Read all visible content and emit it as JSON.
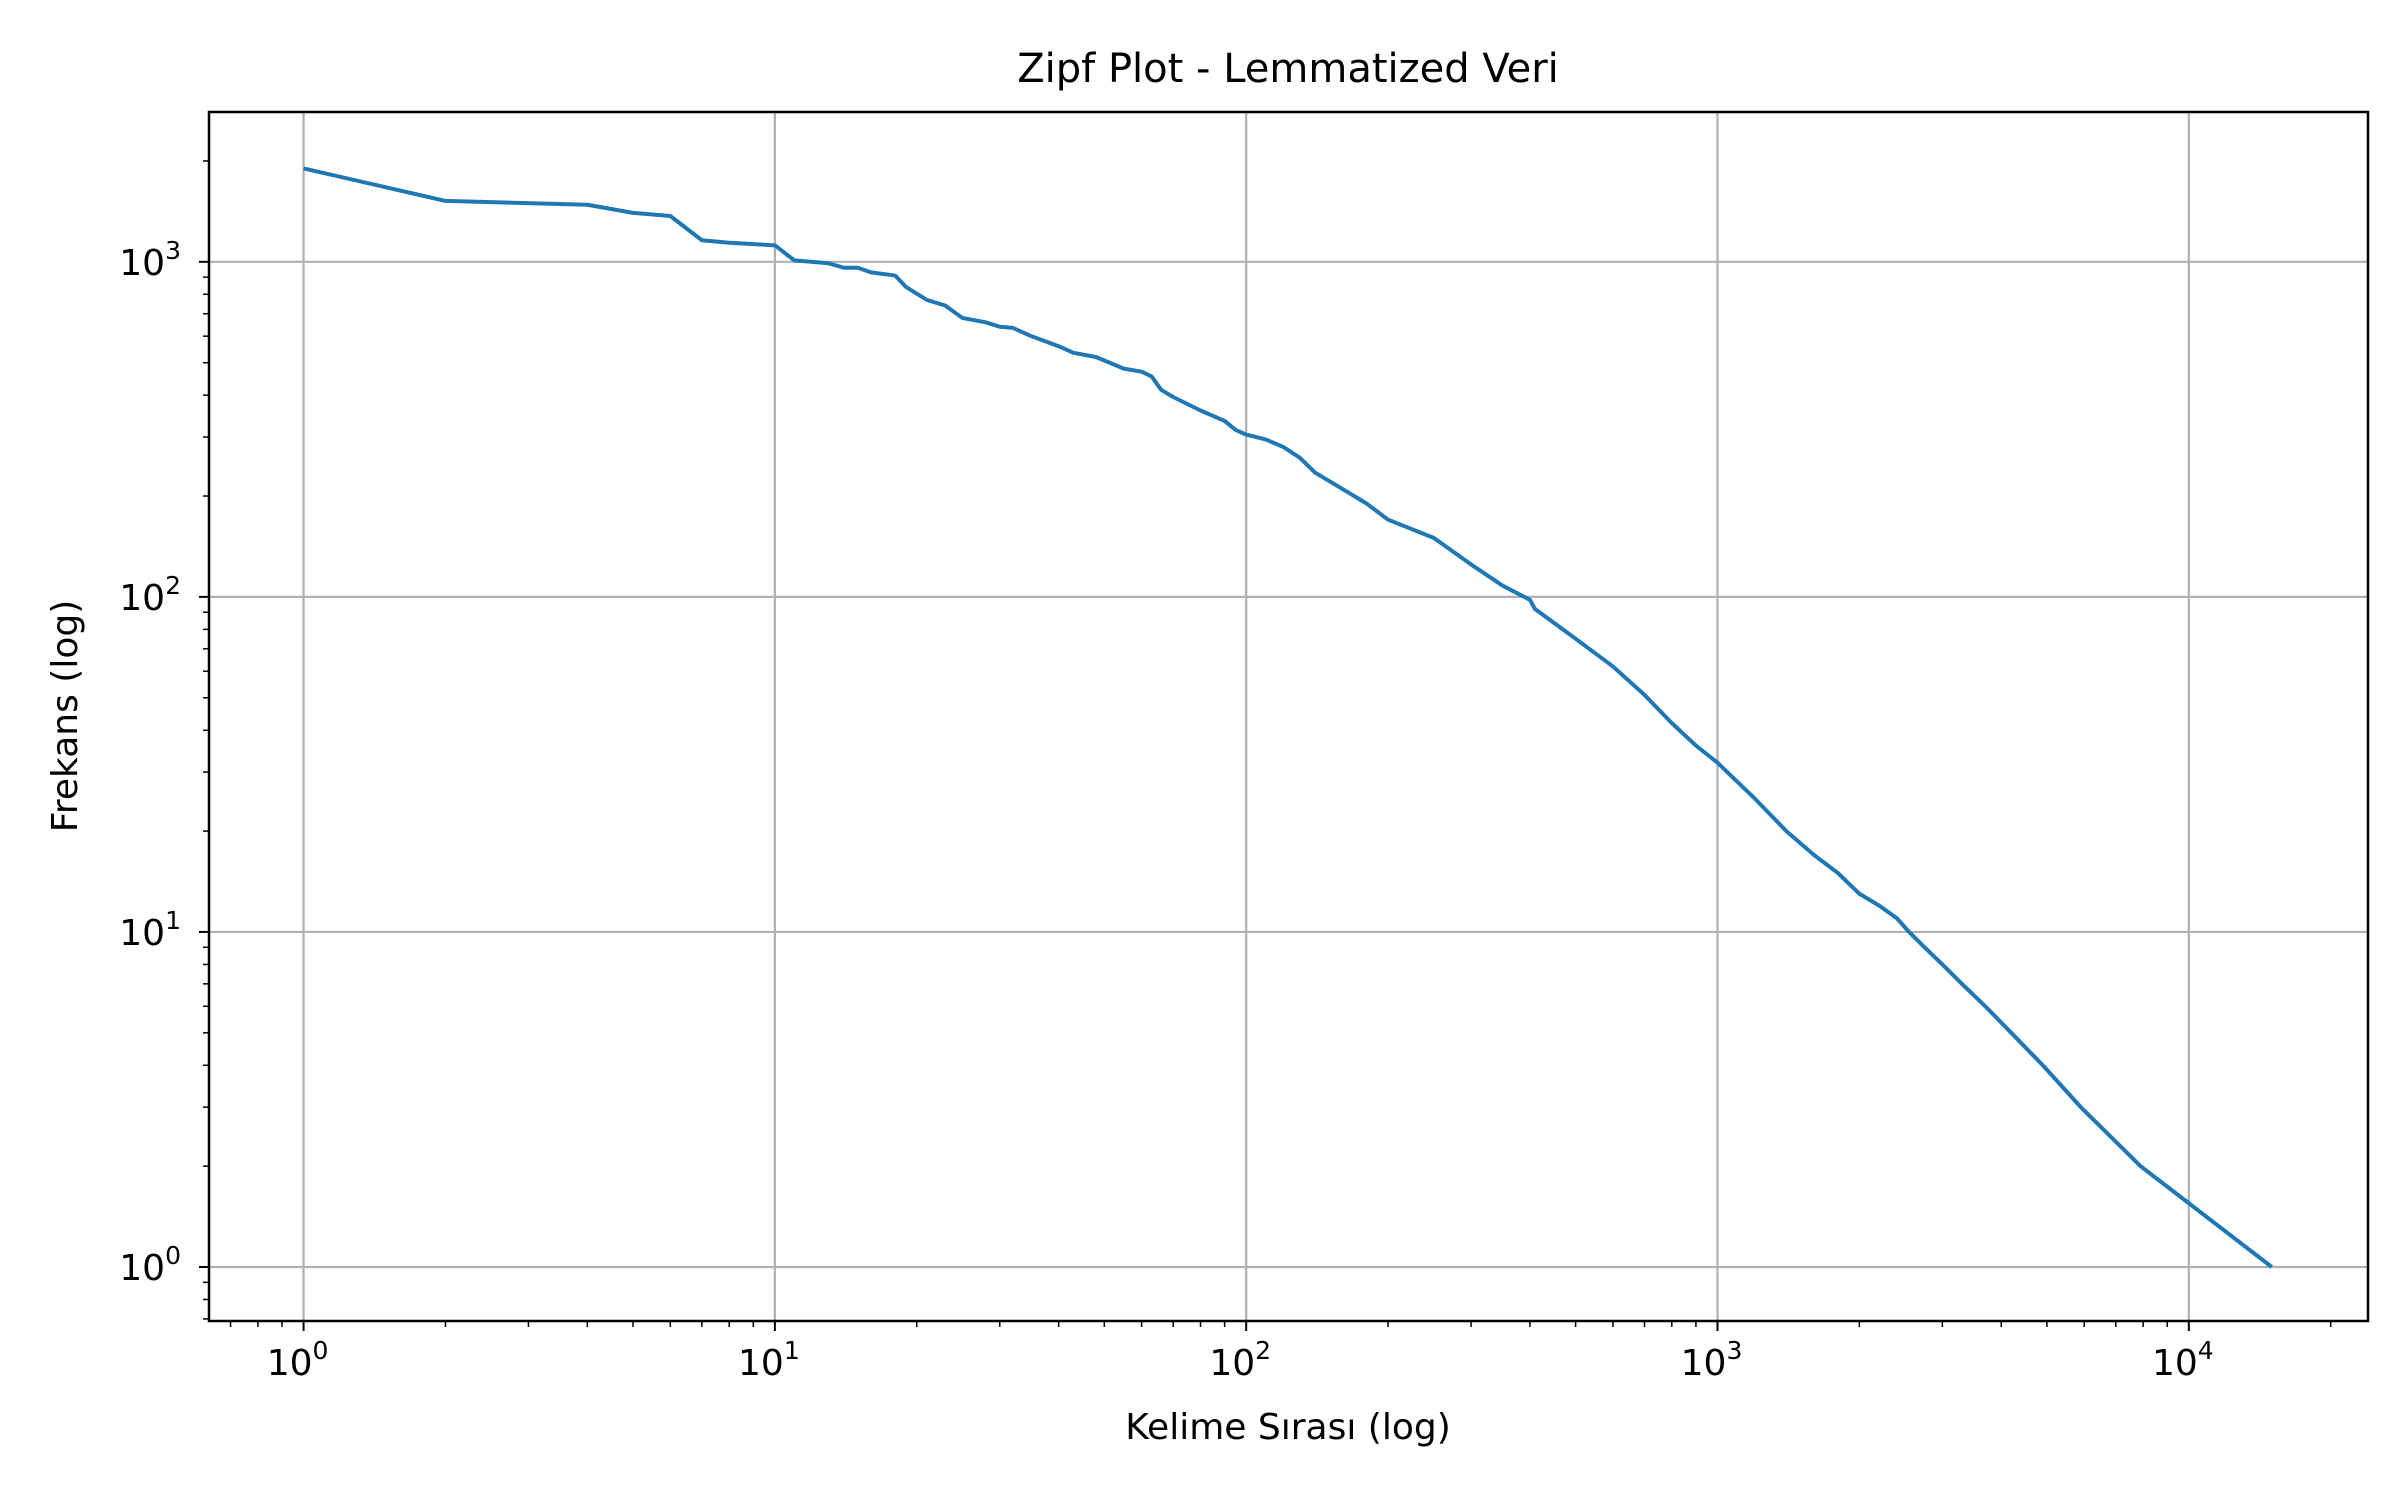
{
  "chart_data": {
    "type": "line",
    "title": "Zipf Plot - Lemmatized Veri",
    "xlabel": "Kelime Sırası (log)",
    "ylabel": "Frekans (log)",
    "xscale": "log",
    "yscale": "log",
    "xlim": [
      0.63,
      24000
    ],
    "ylim": [
      0.69,
      2800
    ],
    "grid": true,
    "x_ticks": [
      {
        "base": "10",
        "exp": "0",
        "value": 1
      },
      {
        "base": "10",
        "exp": "1",
        "value": 10
      },
      {
        "base": "10",
        "exp": "2",
        "value": 100
      },
      {
        "base": "10",
        "exp": "3",
        "value": 1000
      },
      {
        "base": "10",
        "exp": "4",
        "value": 10000
      }
    ],
    "y_ticks": [
      {
        "base": "10",
        "exp": "0",
        "value": 1
      },
      {
        "base": "10",
        "exp": "1",
        "value": 10
      },
      {
        "base": "10",
        "exp": "2",
        "value": 100
      },
      {
        "base": "10",
        "exp": "3",
        "value": 1000
      }
    ],
    "series": [
      {
        "name": "Lemmatized",
        "color": "#1f77b4",
        "points": [
          [
            1,
            1900
          ],
          [
            2,
            1520
          ],
          [
            4,
            1480
          ],
          [
            5,
            1400
          ],
          [
            6,
            1370
          ],
          [
            7,
            1160
          ],
          [
            8,
            1140
          ],
          [
            10,
            1120
          ],
          [
            11,
            1010
          ],
          [
            13,
            990
          ],
          [
            14,
            960
          ],
          [
            15,
            960
          ],
          [
            16,
            930
          ],
          [
            18,
            910
          ],
          [
            19,
            840
          ],
          [
            21,
            770
          ],
          [
            23,
            740
          ],
          [
            25,
            680
          ],
          [
            28,
            660
          ],
          [
            30,
            640
          ],
          [
            32,
            635
          ],
          [
            35,
            600
          ],
          [
            40,
            560
          ],
          [
            43,
            535
          ],
          [
            48,
            520
          ],
          [
            55,
            480
          ],
          [
            60,
            470
          ],
          [
            63,
            455
          ],
          [
            66,
            415
          ],
          [
            70,
            395
          ],
          [
            80,
            360
          ],
          [
            90,
            335
          ],
          [
            95,
            315
          ],
          [
            100,
            305
          ],
          [
            110,
            295
          ],
          [
            120,
            280
          ],
          [
            130,
            260
          ],
          [
            140,
            235
          ],
          [
            160,
            210
          ],
          [
            180,
            190
          ],
          [
            200,
            170
          ],
          [
            250,
            150
          ],
          [
            300,
            125
          ],
          [
            350,
            108
          ],
          [
            400,
            98
          ],
          [
            410,
            92
          ],
          [
            500,
            75
          ],
          [
            600,
            62
          ],
          [
            700,
            51
          ],
          [
            800,
            42
          ],
          [
            900,
            36
          ],
          [
            1000,
            32
          ],
          [
            1200,
            25
          ],
          [
            1400,
            20
          ],
          [
            1600,
            17
          ],
          [
            1800,
            15
          ],
          [
            2000,
            13
          ],
          [
            2200,
            12
          ],
          [
            2400,
            11
          ],
          [
            2550,
            10
          ],
          [
            2750,
            9
          ],
          [
            3000,
            8
          ],
          [
            3300,
            7
          ],
          [
            3700,
            6
          ],
          [
            4200,
            5
          ],
          [
            4900,
            4
          ],
          [
            5900,
            3
          ],
          [
            7900,
            2
          ],
          [
            15000,
            1
          ]
        ]
      }
    ]
  }
}
